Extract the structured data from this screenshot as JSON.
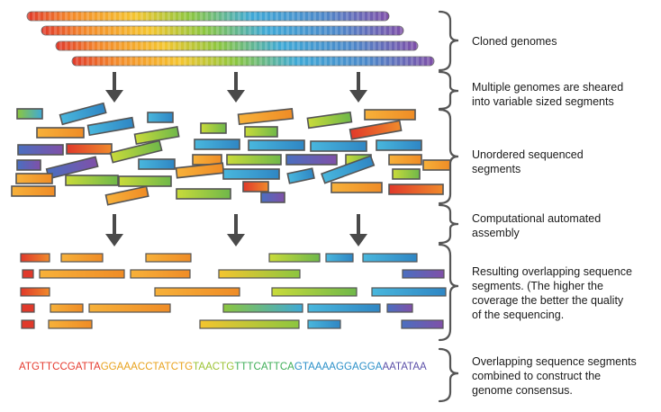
{
  "labels": {
    "cloned": "Cloned genomes",
    "sheared": "Multiple genomes are sheared\ninto variable sized segments",
    "unordered": "Unordered sequenced\nsegments",
    "assembly": "Computational automated\nassembly",
    "overlapping": "Resulting overlapping sequence\nsegments. (The higher the\ncoverage the better the quality\nof the sequencing.",
    "consensus": "Overlapping sequence segments\ncombined to construct the\ngenome consensus."
  },
  "consensus_sequence": [
    {
      "text": "ATGTTCCGATTA",
      "color": "#e53a2e"
    },
    {
      "text": "GGAAACCTATCTG",
      "color": "#e8a21c"
    },
    {
      "text": "TAACTG",
      "color": "#9cc334"
    },
    {
      "text": "TTTCATTCA",
      "color": "#3fae58"
    },
    {
      "text": "GTAAAAGGAGGA",
      "color": "#2a8fc8"
    },
    {
      "text": "AATATAA",
      "color": "#5b4fa8"
    }
  ],
  "colors": {
    "red": "#e0392b",
    "orange": "#f39a2b",
    "yellow": "#f4d02f",
    "green": "#8cc63f",
    "blue": "#3fa9d6",
    "purple": "#7f4fa8",
    "arrow": "#4a4a4a",
    "bracket": "#555555"
  }
}
